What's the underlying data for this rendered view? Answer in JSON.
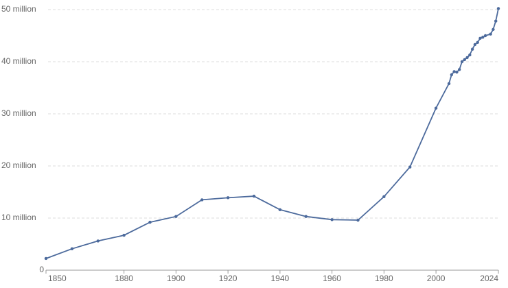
{
  "chart_data": {
    "type": "line",
    "x": [
      1850,
      1860,
      1870,
      1880,
      1890,
      1900,
      1910,
      1920,
      1930,
      1940,
      1950,
      1960,
      1970,
      1980,
      1990,
      2000,
      2005,
      2006,
      2007,
      2008,
      2009,
      2010,
      2011,
      2012,
      2013,
      2014,
      2015,
      2016,
      2017,
      2018,
      2019,
      2021,
      2022,
      2023,
      2024
    ],
    "values": [
      2.24,
      4.1,
      5.6,
      6.7,
      9.2,
      10.3,
      13.5,
      13.9,
      14.2,
      11.6,
      10.3,
      9.7,
      9.6,
      14.1,
      19.8,
      31.1,
      35.8,
      37.5,
      38.1,
      38.0,
      38.5,
      40.0,
      40.4,
      40.8,
      41.3,
      42.4,
      43.3,
      43.7,
      44.5,
      44.7,
      45.0,
      45.3,
      46.2,
      47.8,
      50.2
    ],
    "color": "#4c6a9c",
    "xlim": [
      1850,
      2024
    ],
    "xticks": [
      1850,
      1880,
      1900,
      1920,
      1940,
      1960,
      1980,
      2000,
      2024
    ],
    "ylim": [
      0,
      50
    ],
    "yticks": [
      0,
      {
        "value": 10,
        "label": "10 million"
      },
      {
        "value": 20,
        "label": "20 million"
      },
      {
        "value": 30,
        "label": "30 million"
      },
      {
        "value": 40,
        "label": "40 million"
      },
      {
        "value": 50,
        "label": "50 million"
      }
    ],
    "grid": true
  }
}
